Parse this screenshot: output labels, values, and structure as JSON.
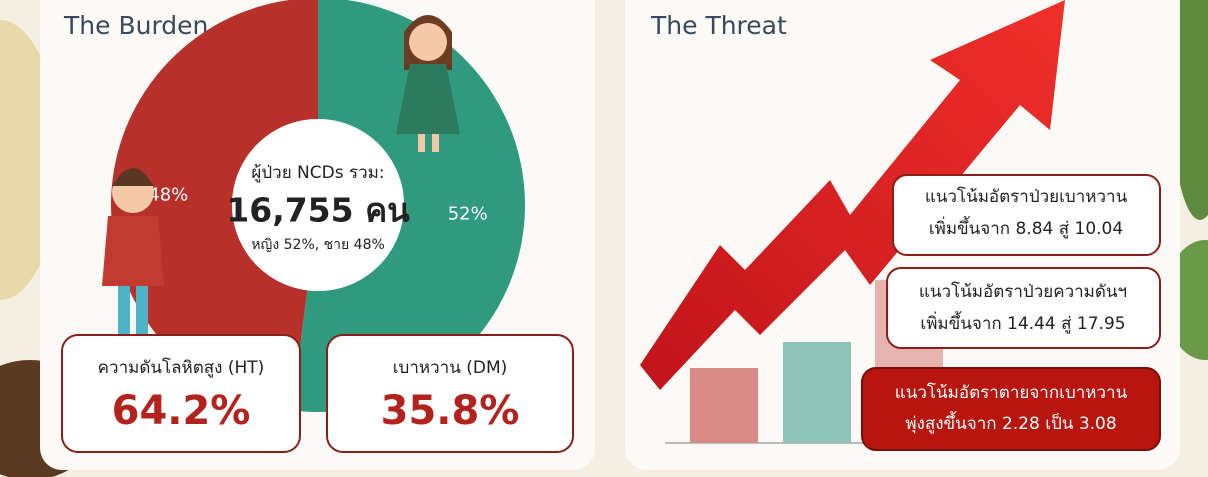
{
  "burden": {
    "title": "The Burden",
    "donut": {
      "values": [
        52,
        48
      ],
      "value_labels": [
        "52%",
        "48%"
      ],
      "colors": [
        "#2f9a7e",
        "#b8302a"
      ]
    },
    "center": {
      "label": "ผู้ป่วย NCDs รวม:",
      "total": "16,755 คน",
      "split": "หญิง 52%, ชาย 48%"
    },
    "cards": [
      {
        "label": "ความดันโลหิตสูง (HT)",
        "value": "64.2%"
      },
      {
        "label": "เบาหวาน (DM)",
        "value": "35.8%"
      }
    ]
  },
  "threat": {
    "title": "The Threat",
    "notes": [
      {
        "line1": "แนวโน้มอัตราป่วยเบาหวาน",
        "line2": "เพิ่มขึ้นจาก 8.84 สู่ 10.04"
      },
      {
        "line1": "แนวโน้มอัตราป่วยความดันฯ",
        "line2": "เพิ่มขึ้นจาก 14.44 สู่ 17.95"
      },
      {
        "line1": "แนวโน้มอัตราตายจากเบาหวาน",
        "line2": "พุ่งสูงขึ้นจาก 2.28 เป็น 3.08"
      }
    ]
  }
}
